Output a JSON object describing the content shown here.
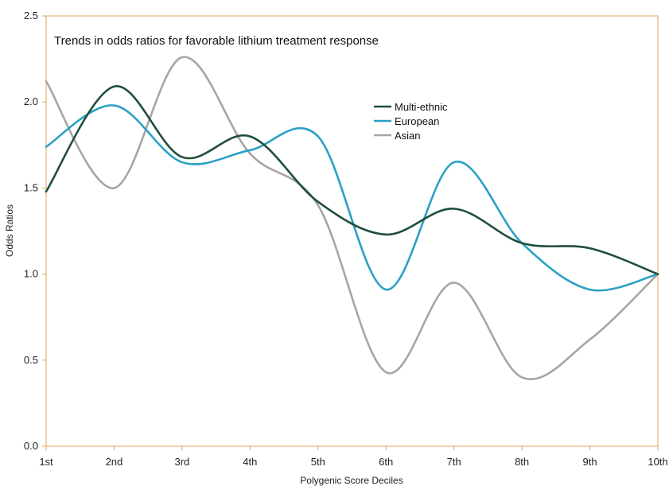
{
  "chart_data": {
    "type": "line",
    "title": "Trends in odds ratios for favorable lithium treatment response",
    "xlabel": "Polygenic Score Deciles",
    "ylabel": "Odds Ratios",
    "categories": [
      "1st",
      "2nd",
      "3rd",
      "4th",
      "5th",
      "6th",
      "7th",
      "8th",
      "9th",
      "10th"
    ],
    "ylim": [
      0,
      2.5
    ],
    "yticks": [
      "0.0",
      "0.5",
      "1.0",
      "1.5",
      "2.0",
      "2.5"
    ],
    "grid": false,
    "legend_position": "upper-center-right",
    "series": [
      {
        "name": "Multi-ethnic",
        "color": "#1f4e3d",
        "values": [
          1.48,
          2.09,
          1.68,
          1.8,
          1.42,
          1.23,
          1.38,
          1.18,
          1.15,
          1.0
        ]
      },
      {
        "name": "European",
        "color": "#2aa0c6",
        "values": [
          1.74,
          1.98,
          1.65,
          1.72,
          1.8,
          0.91,
          1.65,
          1.18,
          0.91,
          1.0
        ]
      },
      {
        "name": "Asian",
        "color": "#a6a6a6",
        "values": [
          2.12,
          1.5,
          2.26,
          1.7,
          1.4,
          0.43,
          0.95,
          0.4,
          0.62,
          1.0
        ]
      }
    ]
  }
}
